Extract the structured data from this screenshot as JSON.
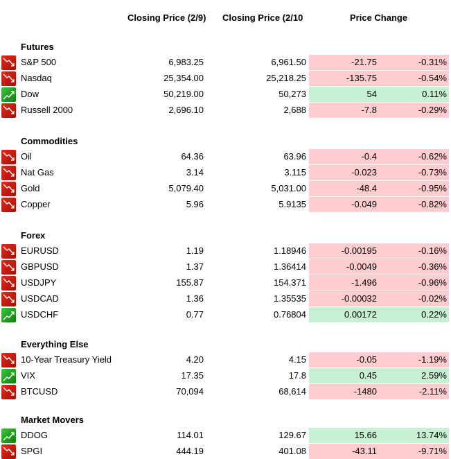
{
  "headers": {
    "closing_prev": "Closing Price (2/9)",
    "closing_curr": "Closing Price (2/10",
    "price_change": "Price Change"
  },
  "colors": {
    "negative_bg": "#ffcccf",
    "positive_bg": "#c8f0d2",
    "down_icon": "#c81b12",
    "up_icon": "#2aa82a"
  },
  "sections": [
    {
      "title": "Futures",
      "rows": [
        {
          "name": "S&P 500",
          "prev": "6,983.25",
          "curr": "6,961.50",
          "change": "-21.75",
          "pct": "-0.31%",
          "trend": "down",
          "icon": "trend-down-icon"
        },
        {
          "name": "Nasdaq",
          "prev": "25,354.00",
          "curr": "25,218.25",
          "change": "-135.75",
          "pct": "-0.54%",
          "trend": "down",
          "icon": "trend-down-icon"
        },
        {
          "name": "Dow",
          "prev": "50,219.00",
          "curr": "50,273",
          "change": "54",
          "pct": "0.11%",
          "trend": "up",
          "icon": "trend-up-icon"
        },
        {
          "name": "Russell 2000",
          "prev": "2,696.10",
          "curr": "2,688",
          "change": "-7.8",
          "pct": "-0.29%",
          "trend": "down",
          "icon": "trend-down-icon"
        }
      ]
    },
    {
      "title": "Commodities",
      "rows": [
        {
          "name": "Oil",
          "prev": "64.36",
          "curr": "63.96",
          "change": "-0.4",
          "pct": "-0.62%",
          "trend": "down",
          "icon": "trend-down-icon"
        },
        {
          "name": "Nat Gas",
          "prev": "3.14",
          "curr": "3.115",
          "change": "-0.023",
          "pct": "-0.73%",
          "trend": "down",
          "icon": "trend-down-icon"
        },
        {
          "name": "Gold",
          "prev": "5,079.40",
          "curr": "5,031.00",
          "change": "-48.4",
          "pct": "-0.95%",
          "trend": "down",
          "icon": "trend-down-icon"
        },
        {
          "name": "Copper",
          "prev": "5.96",
          "curr": "5.9135",
          "change": "-0.049",
          "pct": "-0.82%",
          "trend": "down",
          "icon": "trend-down-icon"
        }
      ]
    },
    {
      "title": "Forex",
      "rows": [
        {
          "name": "EURUSD",
          "prev": "1.19",
          "curr": "1.18946",
          "change": "-0.00195",
          "pct": "-0.16%",
          "trend": "down",
          "icon": "trend-down-icon"
        },
        {
          "name": "GBPUSD",
          "prev": "1.37",
          "curr": "1.36414",
          "change": "-0.0049",
          "pct": "-0.36%",
          "trend": "down",
          "icon": "trend-down-icon"
        },
        {
          "name": "USDJPY",
          "prev": "155.87",
          "curr": "154.371",
          "change": "-1.496",
          "pct": "-0.96%",
          "trend": "down",
          "icon": "trend-down-icon"
        },
        {
          "name": "USDCAD",
          "prev": "1.36",
          "curr": "1.35535",
          "change": "-0.00032",
          "pct": "-0.02%",
          "trend": "down",
          "icon": "trend-down-icon"
        },
        {
          "name": "USDCHF",
          "prev": "0.77",
          "curr": "0.76804",
          "change": "0.00172",
          "pct": "0.22%",
          "trend": "up",
          "icon": "trend-up-icon"
        }
      ]
    },
    {
      "title": "Everything Else",
      "rows": [
        {
          "name": "10-Year Treasury Yield",
          "prev": "4.20",
          "curr": "4.15",
          "change": "-0.05",
          "pct": "-1.19%",
          "trend": "down",
          "icon": "trend-down-icon"
        },
        {
          "name": "VIX",
          "prev": "17.35",
          "curr": "17.8",
          "change": "0.45",
          "pct": "2.59%",
          "trend": "up",
          "icon": "trend-up-icon"
        },
        {
          "name": "BTCUSD",
          "prev": "70,094",
          "curr": "68,614",
          "change": "-1480",
          "pct": "-2.11%",
          "trend": "down",
          "icon": "trend-down-icon"
        }
      ]
    },
    {
      "title": "Market Movers",
      "rows": [
        {
          "name": "DDOG",
          "prev": "114.01",
          "curr": "129.67",
          "change": "15.66",
          "pct": "13.74%",
          "trend": "up",
          "icon": "trend-up-icon"
        },
        {
          "name": "SPGI",
          "prev": "444.19",
          "curr": "401.08",
          "change": "-43.11",
          "pct": "-9.71%",
          "trend": "down",
          "icon": "trend-down-icon"
        }
      ]
    }
  ]
}
